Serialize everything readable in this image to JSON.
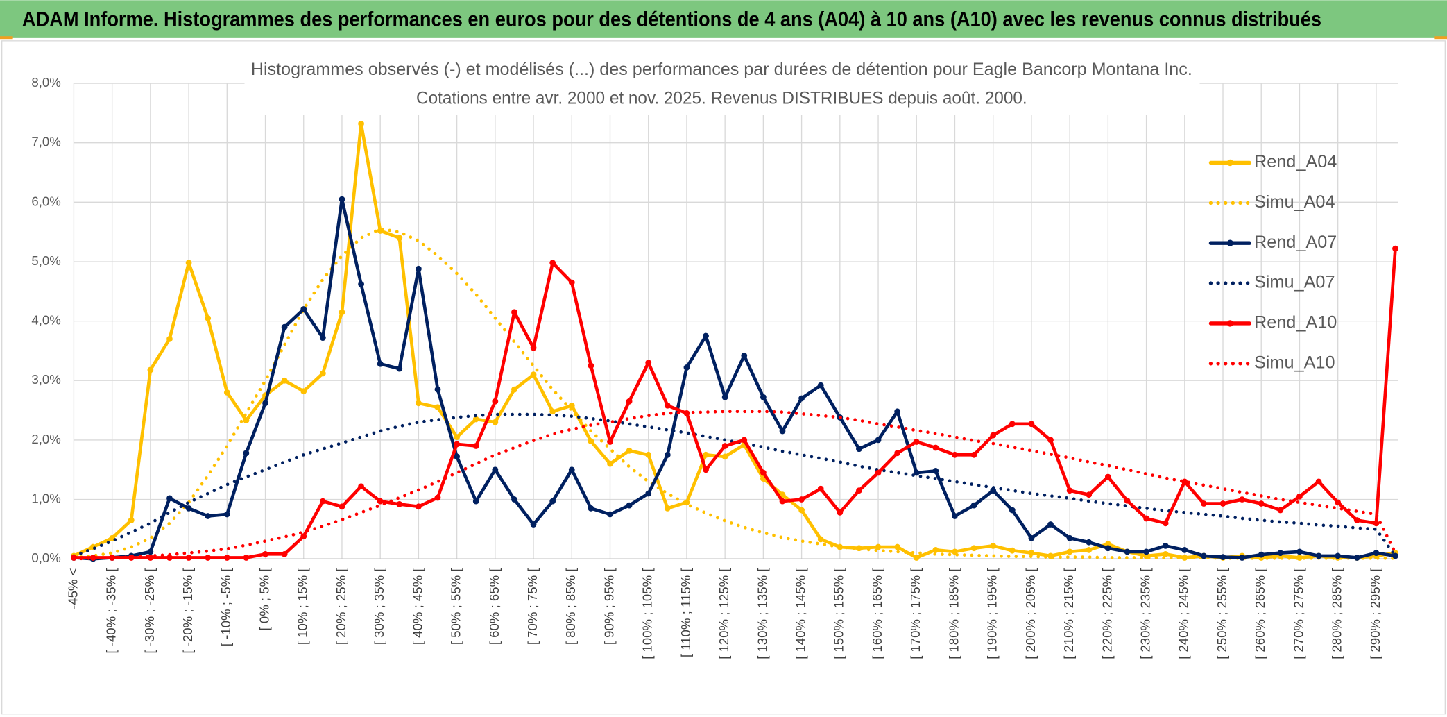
{
  "header": {
    "title": "ADAM Informe. Histogrammes des performances en euros pour des détentions de 4 ans (A04) à 10 ans (A10) avec les revenus connus distribués"
  },
  "chart_data": {
    "type": "line",
    "title": "Histogrammes observés (-) et modélisés (...) des performances par durées de détention pour Eagle Bancorp Montana Inc.",
    "subtitle": "Cotations entre avr. 2000 et nov. 2025. Revenus DISTRIBUES depuis août. 2000.",
    "categories": [
      "-45% <",
      null,
      "[ -40% ; -35% [",
      null,
      "[ -30% ; -25% [",
      null,
      "[ -20% ; -15% [",
      null,
      "[ -10% ; -5% [",
      null,
      "[ 0% ; 5% [",
      null,
      "[ 10% ; 15% [",
      null,
      "[ 20% ; 25% [",
      null,
      "[ 30% ; 35% [",
      null,
      "[ 40% ; 45% [",
      null,
      "[ 50% ; 55% [",
      null,
      "[ 60% ; 65% [",
      null,
      "[ 70% ; 75% [",
      null,
      "[ 80% ; 85% [",
      null,
      "[ 90% ; 95% [",
      null,
      "[ 100% ; 105% [",
      null,
      "[ 110% ; 115% [",
      null,
      "[ 120% ; 125% [",
      null,
      "[ 130% ; 135% [",
      null,
      "[ 140% ; 145% [",
      null,
      "[ 150% ; 155% [",
      null,
      "[ 160% ; 165% [",
      null,
      "[ 170% ; 175% [",
      null,
      "[ 180% ; 185% [",
      null,
      "[ 190% ; 195% [",
      null,
      "[ 200% ; 205% [",
      null,
      "[ 210% ; 215% [",
      null,
      "[ 220% ; 225% [",
      null,
      "[ 230% ; 235% [",
      null,
      "[ 240% ; 245% [",
      null,
      "[ 250% ; 255% [",
      null,
      "[ 260% ; 265% [",
      null,
      "[ 270% ; 275% [",
      null,
      "[ 280% ; 285% [",
      null,
      "[ 290% ; 295% [",
      null
    ],
    "ylim": [
      0,
      8
    ],
    "yticks": [
      {
        "value": 0,
        "label": "0,0%"
      },
      {
        "value": 1,
        "label": "1,0%"
      },
      {
        "value": 2,
        "label": "2,0%"
      },
      {
        "value": 3,
        "label": "3,0%"
      },
      {
        "value": 4,
        "label": "4,0%"
      },
      {
        "value": 5,
        "label": "5,0%"
      },
      {
        "value": 6,
        "label": "6,0%"
      },
      {
        "value": 7,
        "label": "7,0%"
      },
      {
        "value": 8,
        "label": "8,0%"
      }
    ],
    "grid": true,
    "legend": "right",
    "series": [
      {
        "name": "Rend_A04",
        "color": "#ffc000",
        "dash": "solid",
        "marker": true,
        "values": [
          0.05,
          0.2,
          0.35,
          0.65,
          3.18,
          3.7,
          4.98,
          4.05,
          2.8,
          2.33,
          2.75,
          3.0,
          2.82,
          3.12,
          4.15,
          7.32,
          5.52,
          5.4,
          2.62,
          2.55,
          2.05,
          2.35,
          2.3,
          2.85,
          3.1,
          2.48,
          2.58,
          1.98,
          1.6,
          1.82,
          1.75,
          0.85,
          0.95,
          1.75,
          1.72,
          1.92,
          1.35,
          1.08,
          0.82,
          0.33,
          0.2,
          0.18,
          0.2,
          0.2,
          0.02,
          0.15,
          0.12,
          0.18,
          0.22,
          0.14,
          0.1,
          0.05,
          0.12,
          0.15,
          0.25,
          0.12,
          0.05,
          0.08,
          0.02,
          0.05,
          0.02,
          0.05,
          0.02,
          0.05,
          0.02,
          0.05,
          0.02,
          0.02,
          0.05,
          0.1
        ]
      },
      {
        "name": "Simu_A04",
        "color": "#ffc000",
        "dash": "dotted",
        "marker": false,
        "values": [
          0.02,
          0.05,
          0.1,
          0.2,
          0.35,
          0.6,
          0.95,
          1.4,
          1.9,
          2.45,
          3.0,
          3.6,
          4.2,
          4.7,
          5.1,
          5.4,
          5.55,
          5.5,
          5.35,
          5.1,
          4.8,
          4.45,
          4.05,
          3.65,
          3.25,
          2.85,
          2.5,
          2.15,
          1.85,
          1.55,
          1.3,
          1.1,
          0.92,
          0.77,
          0.64,
          0.53,
          0.44,
          0.36,
          0.3,
          0.25,
          0.2,
          0.17,
          0.14,
          0.12,
          0.1,
          0.08,
          0.07,
          0.06,
          0.05,
          0.04,
          0.04,
          0.03,
          0.03,
          0.03,
          0.02,
          0.02,
          0.02,
          0.02,
          0.02,
          0.02,
          0.01,
          0.01,
          0.01,
          0.01,
          0.01,
          0.01,
          0.01,
          0.01,
          0.01,
          0.01
        ]
      },
      {
        "name": "Rend_A07",
        "color": "#002060",
        "dash": "solid",
        "marker": true,
        "values": [
          0.02,
          0.0,
          0.02,
          0.05,
          0.12,
          1.02,
          0.85,
          0.72,
          0.75,
          1.78,
          2.62,
          3.9,
          4.2,
          3.72,
          6.05,
          4.62,
          3.28,
          3.2,
          4.88,
          2.85,
          1.72,
          0.97,
          1.5,
          1.0,
          0.58,
          0.97,
          1.5,
          0.85,
          0.75,
          0.9,
          1.1,
          1.75,
          3.22,
          3.75,
          2.72,
          3.42,
          2.72,
          2.15,
          2.7,
          2.92,
          2.38,
          1.85,
          2.0,
          2.48,
          1.45,
          1.48,
          0.72,
          0.9,
          1.15,
          0.82,
          0.35,
          0.58,
          0.35,
          0.28,
          0.18,
          0.12,
          0.12,
          0.22,
          0.15,
          0.05,
          0.03,
          0.02,
          0.07,
          0.1,
          0.12,
          0.05,
          0.05,
          0.02,
          0.1,
          0.05
        ]
      },
      {
        "name": "Simu_A07",
        "color": "#002060",
        "dash": "dotted",
        "marker": false,
        "values": [
          0.05,
          0.17,
          0.3,
          0.45,
          0.6,
          0.78,
          0.95,
          1.1,
          1.25,
          1.38,
          1.5,
          1.63,
          1.75,
          1.85,
          1.95,
          2.05,
          2.15,
          2.23,
          2.3,
          2.34,
          2.38,
          2.41,
          2.43,
          2.43,
          2.43,
          2.42,
          2.4,
          2.36,
          2.32,
          2.27,
          2.22,
          2.17,
          2.12,
          2.06,
          2.0,
          1.94,
          1.88,
          1.81,
          1.75,
          1.69,
          1.63,
          1.56,
          1.5,
          1.45,
          1.4,
          1.35,
          1.3,
          1.25,
          1.2,
          1.15,
          1.1,
          1.06,
          1.02,
          0.97,
          0.93,
          0.89,
          0.85,
          0.81,
          0.78,
          0.75,
          0.72,
          0.68,
          0.65,
          0.62,
          0.6,
          0.57,
          0.55,
          0.52,
          0.5,
          0.05
        ]
      },
      {
        "name": "Rend_A10",
        "color": "#ff0000",
        "dash": "solid",
        "marker": true,
        "values": [
          0.02,
          0.02,
          0.02,
          0.02,
          0.02,
          0.02,
          0.02,
          0.02,
          0.02,
          0.02,
          0.08,
          0.08,
          0.38,
          0.97,
          0.88,
          1.22,
          0.97,
          0.92,
          0.88,
          1.03,
          1.93,
          1.9,
          2.65,
          4.15,
          3.55,
          4.98,
          4.65,
          3.25,
          1.97,
          2.65,
          3.3,
          2.58,
          2.45,
          1.5,
          1.9,
          2.0,
          1.45,
          0.97,
          1.0,
          1.18,
          0.78,
          1.15,
          1.45,
          1.78,
          1.97,
          1.87,
          1.75,
          1.75,
          2.08,
          2.27,
          2.27,
          2.0,
          1.15,
          1.08,
          1.38,
          0.98,
          0.68,
          0.6,
          1.3,
          0.93,
          0.93,
          1.0,
          0.93,
          0.82,
          1.05,
          1.3,
          0.95,
          0.65,
          0.6,
          5.22
        ]
      },
      {
        "name": "Simu_A10",
        "color": "#ff0000",
        "dash": "dotted",
        "marker": false,
        "values": [
          0.0,
          0.01,
          0.02,
          0.03,
          0.05,
          0.07,
          0.1,
          0.13,
          0.17,
          0.23,
          0.3,
          0.37,
          0.45,
          0.55,
          0.66,
          0.78,
          0.9,
          1.03,
          1.16,
          1.3,
          1.45,
          1.6,
          1.75,
          1.87,
          1.99,
          2.1,
          2.18,
          2.25,
          2.3,
          2.36,
          2.41,
          2.45,
          2.46,
          2.47,
          2.48,
          2.48,
          2.48,
          2.47,
          2.44,
          2.41,
          2.38,
          2.33,
          2.27,
          2.22,
          2.16,
          2.11,
          2.05,
          1.99,
          1.94,
          1.88,
          1.82,
          1.76,
          1.7,
          1.63,
          1.57,
          1.5,
          1.43,
          1.36,
          1.3,
          1.24,
          1.18,
          1.12,
          1.06,
          1.0,
          0.95,
          0.9,
          0.85,
          0.8,
          0.75,
          0.1
        ]
      }
    ]
  }
}
